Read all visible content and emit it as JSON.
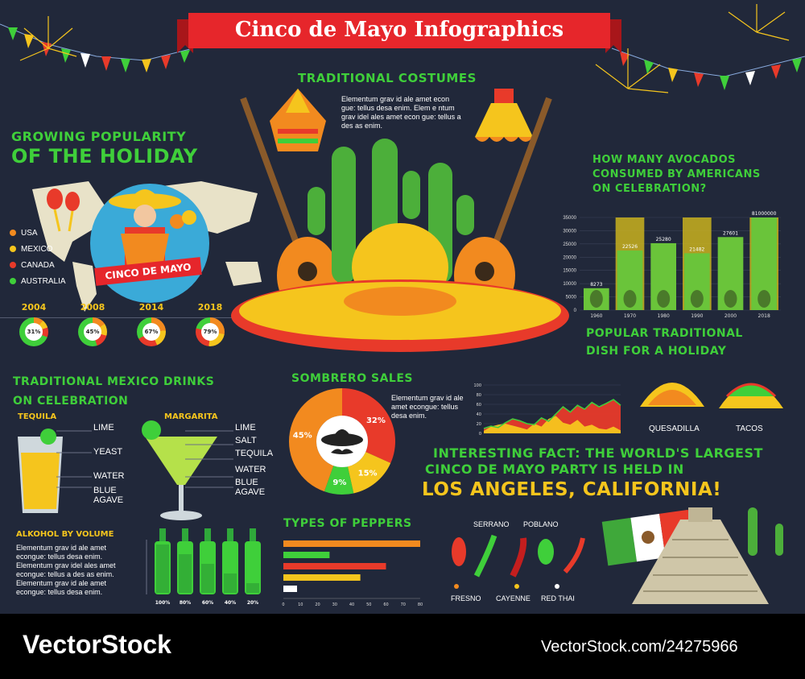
{
  "banner": {
    "title": "Cinco de Mayo Infographics"
  },
  "costumes": {
    "heading": "TRADITIONAL COSTUMES",
    "text": "Elementum grav id ale amet econ gue: tellus desa enim. Elem e ntum grav idel ales amet econ gue: tellus a des as enim."
  },
  "popularity": {
    "heading_line1": "GROWING POPULARITY",
    "heading_line2": "OF THE HOLIDAY",
    "badge_text": "CINCO DE MAYO",
    "legend": [
      {
        "label": "USA",
        "color": "#f28a1f"
      },
      {
        "label": "MEXICO",
        "color": "#f5c51d"
      },
      {
        "label": "CANADA",
        "color": "#e83a2a"
      },
      {
        "label": "AUSTRALIA",
        "color": "#3fcf3a"
      }
    ],
    "years": [
      {
        "year": "2004",
        "value": "31%"
      },
      {
        "year": "2008",
        "value": "45%"
      },
      {
        "year": "2014",
        "value": "67%"
      },
      {
        "year": "2018",
        "value": "79%"
      }
    ]
  },
  "avocados": {
    "heading_line1": "HOW MANY AVOCADOS",
    "heading_line2": "CONSUMED BY AMERICANS",
    "heading_line3": "ON CELEBRATION?"
  },
  "chart_data": [
    {
      "type": "bar",
      "categories": [
        "1960",
        "1970",
        "1980",
        "1990",
        "2000",
        "2018"
      ],
      "values": [
        8273,
        22526,
        25280,
        21482,
        27601,
        81000000
      ],
      "value_labels": [
        "8273",
        "22526",
        "25280",
        "21482",
        "27601",
        "81000000"
      ],
      "yticks": [
        "35000",
        "30000",
        "25000",
        "20000",
        "15000",
        "10000",
        "5000",
        "0"
      ],
      "ylim": [
        0,
        35000
      ]
    },
    {
      "type": "pie",
      "categories": [
        "32%",
        "15%",
        "9%",
        "45%"
      ],
      "values": [
        32,
        15,
        9,
        45
      ],
      "colors": [
        "#e83a2a",
        "#f5c51d",
        "#3fcf3a",
        "#f28a1f"
      ]
    },
    {
      "type": "area",
      "yticks": [
        "100",
        "80",
        "60",
        "40",
        "20",
        "0"
      ],
      "series": [
        {
          "values": [
            10,
            15,
            12,
            22,
            30,
            26,
            20,
            18,
            32,
            25,
            40,
            55,
            44,
            58,
            50,
            64,
            55,
            62,
            70,
            58
          ]
        },
        {
          "values": [
            5,
            14,
            18,
            20,
            16,
            12,
            8,
            20,
            14,
            30,
            36,
            22,
            18,
            28,
            14,
            18,
            10,
            8,
            14,
            6
          ]
        }
      ],
      "ylim": [
        0,
        100
      ]
    },
    {
      "type": "bar",
      "orientation": "horizontal",
      "values": [
        80,
        27,
        60,
        45,
        8
      ],
      "colors": [
        "#f28a1f",
        "#3fcf3a",
        "#e83a2a",
        "#f5c51d",
        "#ffffff"
      ],
      "xticks": [
        "0",
        "10",
        "20",
        "30",
        "40",
        "50",
        "60",
        "70",
        "80"
      ],
      "xlim": [
        0,
        80
      ]
    }
  ],
  "dish": {
    "heading_line1": "POPULAR TRADITIONAL",
    "heading_line2": "DISH FOR A HOLIDAY",
    "items": [
      "QUESADILLA",
      "TACOS"
    ]
  },
  "drinks": {
    "heading_line1": "TRADITIONAL MEXICO DRINKS",
    "heading_line2": "ON CELEBRATION",
    "tequila": {
      "name": "TEQUILA",
      "ingredients": [
        "LIME",
        "YEAST",
        "WATER",
        "BLUE",
        "AGAVE"
      ]
    },
    "margarita": {
      "name": "MARGARITA",
      "ingredients": [
        "LIME",
        "SALT",
        "TEQUILA",
        "WATER",
        "BLUE",
        "AGAVE"
      ]
    }
  },
  "sombrero_sales": {
    "heading": "SOMBRERO SALES",
    "text": "Elementum grav id ale amet econgue: tellus desa enim."
  },
  "fact": {
    "line1": "INTERESTING FACT: THE WORLD'S LARGEST",
    "line2": "CINCO DE MAYO PARTY IS HELD IN",
    "line3": "LOS ANGELES, CALIFORNIA!"
  },
  "alcohol": {
    "heading": "ALKOHOL BY VOLUME",
    "text": "Elementum grav id ale amet econgue: tellus desa enim. Elementum grav idel ales amet econgue: tellus a des as enim. Elementum grav id ale amet econgue: tellus desa enim.",
    "bottles": [
      {
        "label": "100%",
        "value": 100
      },
      {
        "label": "80%",
        "value": 80
      },
      {
        "label": "60%",
        "value": 60
      },
      {
        "label": "40%",
        "value": 40
      },
      {
        "label": "20%",
        "value": 20
      }
    ]
  },
  "peppers": {
    "heading": "TYPES OF PEPPERS",
    "top_labels": [
      "SERRANO",
      "POBLANO"
    ],
    "bottom_labels": [
      "FRESNO",
      "CAYENNE",
      "RED THAI"
    ]
  },
  "footer": {
    "brand": "VectorStock",
    "url": "VectorStock.com/24275966"
  },
  "colors": {
    "background": "#21283a",
    "green": "#3fcf3a",
    "yellow": "#f5c51d",
    "red": "#e83a2a",
    "orange": "#f28a1f"
  }
}
